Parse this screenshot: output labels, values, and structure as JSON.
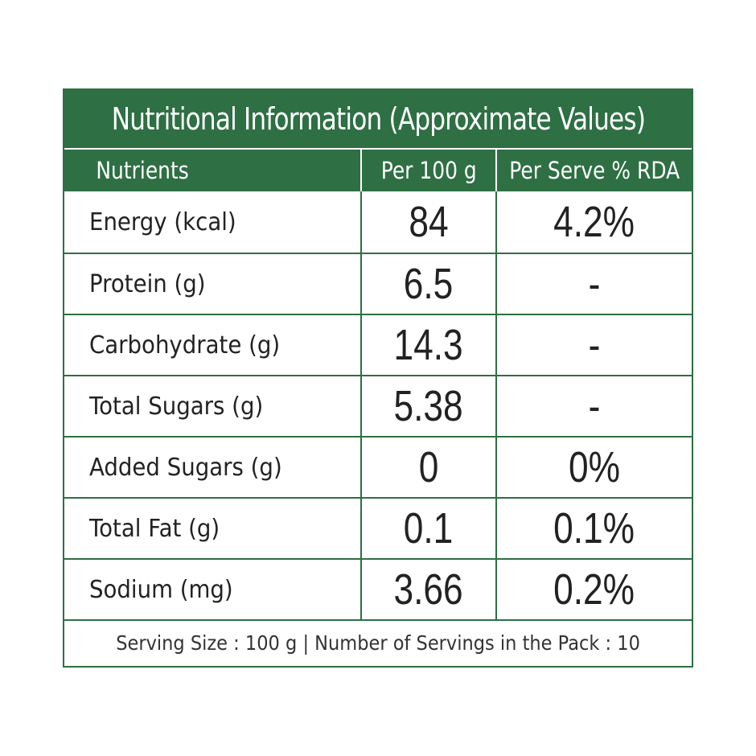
{
  "title": "Nutritional Information (Approximate Values)",
  "headers": {
    "nutrients": "Nutrients",
    "per100": "Per 100 g",
    "rda": "Per Serve % RDA"
  },
  "rows": [
    {
      "name": "Energy (kcal)",
      "per100": "84",
      "rda": "4.2%"
    },
    {
      "name": "Protein (g)",
      "per100": "6.5",
      "rda": "-"
    },
    {
      "name": "Carbohydrate (g)",
      "per100": "14.3",
      "rda": "-"
    },
    {
      "name": "Total Sugars (g)",
      "per100": "5.38",
      "rda": "-"
    },
    {
      "name": "Added Sugars (g)",
      "per100": "0",
      "rda": "0%"
    },
    {
      "name": "Total Fat (g)",
      "per100": "0.1",
      "rda": "0.1%"
    },
    {
      "name": "Sodium (mg)",
      "per100": "3.66",
      "rda": "0.2%"
    }
  ],
  "footer": "Serving Size : 100 g | Number of Servings in the Pack : 10",
  "colors": {
    "accent": "#2e6f44",
    "text": "#222222",
    "background": "#ffffff"
  }
}
